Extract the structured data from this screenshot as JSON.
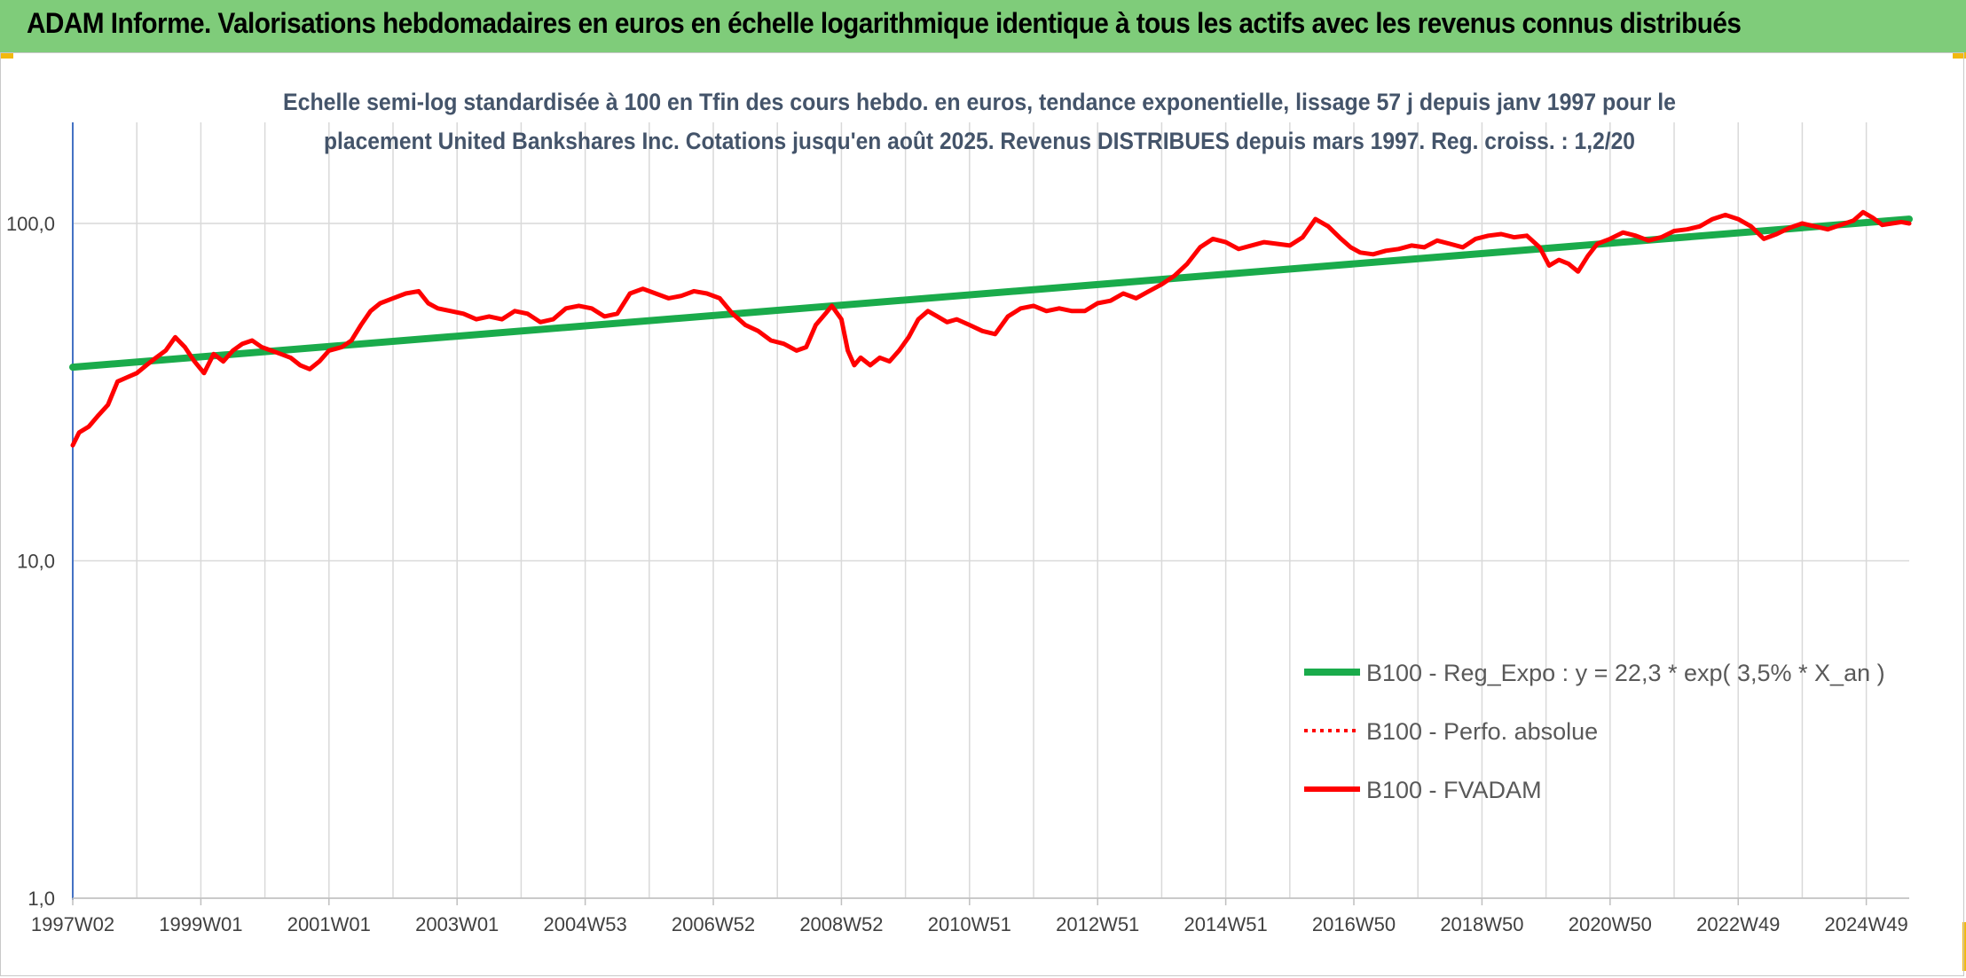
{
  "header": {
    "title": "ADAM Informe. Valorisations hebdomadaires en euros en échelle logarithmique identique à tous les actifs avec les revenus connus distribués"
  },
  "colors": {
    "banner": "#7fcc7a",
    "corner_accent": "#f2b90f",
    "trend_line": "#1aab4b",
    "fvadam_line": "#ff0000",
    "perfo_line": "#ff0000",
    "grid": "#d9d9d9",
    "y_axis": "#4472c4"
  },
  "chart_data": {
    "type": "line",
    "title_lines": [
      "Echelle semi-log standardisée à 100 en Tfin des cours hebdo. en euros, tendance exponentielle, lissage 57 j depuis janv 1997 pour le",
      "placement United Bankshares Inc. Cotations jusqu'en août 2025. Revenus DISTRIBUES depuis mars 1997. Reg. croiss. : 1,2/20"
    ],
    "y_scale": "log",
    "ylim": [
      1,
      200
    ],
    "y_ticks": [
      {
        "value": 100,
        "label": "100,0"
      },
      {
        "value": 10,
        "label": "10,0"
      },
      {
        "value": 1,
        "label": "1,0"
      }
    ],
    "xlim": [
      1997.0,
      2025.67
    ],
    "x_tick_labels": [
      "1997W02",
      "1999W01",
      "2001W01",
      "2003W01",
      "2004W53",
      "2006W52",
      "2008W52",
      "2010W51",
      "2012W51",
      "2014W51",
      "2016W50",
      "2018W50",
      "2020W50",
      "2022W49",
      "2024W49"
    ],
    "x_tick_years": [
      1997.0,
      1999.0,
      2001.0,
      2003.0,
      2005.0,
      2007.0,
      2009.0,
      2011.0,
      2013.0,
      2015.0,
      2017.0,
      2019.0,
      2021.0,
      2023.0,
      2025.0
    ],
    "grid": true,
    "legend_position": "bottom-right",
    "legend": [
      {
        "key": "trend",
        "label": "B100 - Reg_Expo : y = 22,3 * exp( 3,5% *  X_an )",
        "style": "solid-thick"
      },
      {
        "key": "perfo",
        "label": "B100 - Perfo. absolue",
        "style": "dotted"
      },
      {
        "key": "fvadam",
        "label": "B100 - FVADAM",
        "style": "solid"
      }
    ],
    "series": [
      {
        "key": "trend",
        "name": "B100 - Reg_Expo : y = 22,3 * exp( 3,5% *  X_an )",
        "color": "#1aab4b",
        "x": [
          1997.0,
          2025.67
        ],
        "y": [
          37.5,
          103.0
        ]
      },
      {
        "key": "fvadam",
        "name": "B100 - FVADAM",
        "color": "#ff0000",
        "x": [
          1997.0,
          1997.1,
          1997.25,
          1997.4,
          1997.55,
          1997.7,
          1997.85,
          1998.0,
          1998.15,
          1998.3,
          1998.45,
          1998.6,
          1998.75,
          1998.9,
          1999.05,
          1999.2,
          1999.35,
          1999.5,
          1999.65,
          1999.8,
          1999.95,
          2000.1,
          2000.25,
          2000.4,
          2000.55,
          2000.7,
          2000.85,
          2001.0,
          2001.2,
          2001.35,
          2001.5,
          2001.65,
          2001.8,
          2002.0,
          2002.2,
          2002.4,
          2002.55,
          2002.7,
          2002.9,
          2003.1,
          2003.3,
          2003.5,
          2003.7,
          2003.9,
          2004.1,
          2004.3,
          2004.5,
          2004.7,
          2004.9,
          2005.1,
          2005.3,
          2005.5,
          2005.7,
          2005.9,
          2006.1,
          2006.3,
          2006.5,
          2006.7,
          2006.9,
          2007.1,
          2007.3,
          2007.5,
          2007.7,
          2007.9,
          2008.1,
          2008.3,
          2008.45,
          2008.6,
          2008.75,
          2008.85,
          2009.0,
          2009.1,
          2009.2,
          2009.3,
          2009.45,
          2009.6,
          2009.75,
          2009.9,
          2010.05,
          2010.2,
          2010.35,
          2010.5,
          2010.65,
          2010.8,
          2011.0,
          2011.2,
          2011.4,
          2011.6,
          2011.8,
          2012.0,
          2012.2,
          2012.4,
          2012.6,
          2012.8,
          2013.0,
          2013.2,
          2013.4,
          2013.6,
          2013.8,
          2014.0,
          2014.2,
          2014.4,
          2014.6,
          2014.8,
          2015.0,
          2015.2,
          2015.4,
          2015.6,
          2015.8,
          2016.0,
          2016.2,
          2016.4,
          2016.6,
          2016.8,
          2016.95,
          2017.1,
          2017.3,
          2017.5,
          2017.7,
          2017.9,
          2018.1,
          2018.3,
          2018.5,
          2018.7,
          2018.9,
          2019.1,
          2019.3,
          2019.5,
          2019.7,
          2019.9,
          2020.05,
          2020.2,
          2020.35,
          2020.5,
          2020.65,
          2020.8,
          2021.0,
          2021.2,
          2021.4,
          2021.6,
          2021.8,
          2022.0,
          2022.2,
          2022.4,
          2022.6,
          2022.8,
          2023.0,
          2023.2,
          2023.4,
          2023.6,
          2023.8,
          2024.0,
          2024.2,
          2024.4,
          2024.6,
          2024.8,
          2024.95,
          2025.1,
          2025.25,
          2025.4,
          2025.55,
          2025.67
        ],
        "y": [
          22,
          24,
          25,
          27,
          29,
          34,
          35,
          36,
          38,
          40,
          42,
          46,
          43,
          39,
          36,
          41,
          39,
          42,
          44,
          45,
          43,
          42,
          41,
          40,
          38,
          37,
          39,
          42,
          43,
          45,
          50,
          55,
          58,
          60,
          62,
          63,
          58,
          56,
          55,
          54,
          52,
          53,
          52,
          55,
          54,
          51,
          52,
          56,
          57,
          56,
          53,
          54,
          62,
          64,
          62,
          60,
          61,
          63,
          62,
          60,
          54,
          50,
          48,
          45,
          44,
          42,
          43,
          50,
          54,
          57,
          52,
          42,
          38,
          40,
          38,
          40,
          39,
          42,
          46,
          52,
          55,
          53,
          51,
          52,
          50,
          48,
          47,
          53,
          56,
          57,
          55,
          56,
          55,
          55,
          58,
          59,
          62,
          60,
          63,
          66,
          70,
          76,
          85,
          90,
          88,
          84,
          86,
          88,
          87,
          86,
          91,
          103,
          98,
          90,
          85,
          82,
          81,
          83,
          84,
          86,
          85,
          89,
          87,
          85,
          90,
          92,
          93,
          91,
          92,
          85,
          75,
          78,
          76,
          72,
          80,
          87,
          90,
          94,
          92,
          89,
          91,
          95,
          96,
          98,
          103,
          106,
          103,
          98,
          90,
          93,
          97,
          100,
          98,
          96,
          99,
          102,
          108,
          104,
          99,
          100,
          101,
          100
        ]
      }
    ]
  }
}
